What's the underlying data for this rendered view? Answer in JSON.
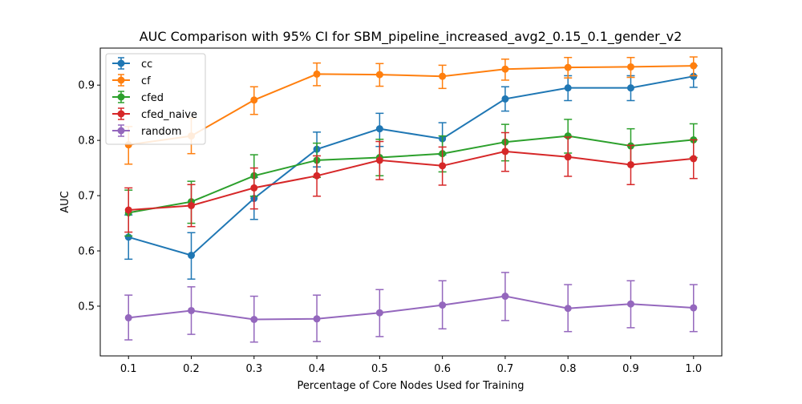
{
  "chart_data": {
    "type": "line",
    "title": "AUC Comparison with 95% CI for SBM_pipeline_increased_avg2_0.15_0.1_gender_v2",
    "xlabel": "Percentage of Core Nodes Used for Training",
    "ylabel": "AUC",
    "x": [
      0.1,
      0.2,
      0.3,
      0.4,
      0.5,
      0.6,
      0.7,
      0.8,
      0.9,
      1.0
    ],
    "x_ticks": [
      "0.1",
      "0.2",
      "0.3",
      "0.4",
      "0.5",
      "0.6",
      "0.7",
      "0.8",
      "0.9",
      "1.0"
    ],
    "y_ticks": [
      "0.5",
      "0.6",
      "0.7",
      "0.8",
      "0.9"
    ],
    "xlim": [
      0.055,
      1.045
    ],
    "ylim": [
      0.41,
      0.967
    ],
    "legend_position": "upper-left",
    "series": [
      {
        "name": "cc",
        "color": "#1f77b4",
        "values": [
          0.625,
          0.592,
          0.695,
          0.784,
          0.821,
          0.803,
          0.875,
          0.895,
          0.895,
          0.916
        ],
        "ci_low": [
          0.585,
          0.549,
          0.657,
          0.752,
          0.789,
          0.774,
          0.853,
          0.872,
          0.872,
          0.896
        ],
        "ci_high": [
          0.665,
          0.633,
          0.733,
          0.815,
          0.849,
          0.832,
          0.897,
          0.917,
          0.917,
          0.935
        ]
      },
      {
        "name": "cf",
        "color": "#ff7f0e",
        "values": [
          0.792,
          0.808,
          0.873,
          0.92,
          0.919,
          0.916,
          0.929,
          0.932,
          0.933,
          0.935
        ],
        "ci_low": [
          0.757,
          0.776,
          0.847,
          0.899,
          0.898,
          0.894,
          0.909,
          0.913,
          0.914,
          0.917
        ],
        "ci_high": [
          0.825,
          0.84,
          0.897,
          0.94,
          0.939,
          0.936,
          0.947,
          0.95,
          0.95,
          0.951
        ]
      },
      {
        "name": "cfed",
        "color": "#2ca02c",
        "values": [
          0.669,
          0.689,
          0.736,
          0.764,
          0.769,
          0.776,
          0.797,
          0.808,
          0.79,
          0.801
        ],
        "ci_low": [
          0.627,
          0.65,
          0.699,
          0.733,
          0.736,
          0.743,
          0.763,
          0.777,
          0.756,
          0.769
        ],
        "ci_high": [
          0.71,
          0.726,
          0.774,
          0.795,
          0.802,
          0.808,
          0.829,
          0.838,
          0.821,
          0.83
        ]
      },
      {
        "name": "cfed_naive",
        "color": "#d62728",
        "values": [
          0.674,
          0.682,
          0.714,
          0.736,
          0.764,
          0.754,
          0.78,
          0.77,
          0.756,
          0.767
        ],
        "ci_low": [
          0.634,
          0.644,
          0.676,
          0.699,
          0.729,
          0.719,
          0.744,
          0.735,
          0.72,
          0.731
        ],
        "ci_high": [
          0.714,
          0.72,
          0.75,
          0.772,
          0.798,
          0.788,
          0.814,
          0.806,
          0.791,
          0.801
        ]
      },
      {
        "name": "random",
        "color": "#9467bd",
        "values": [
          0.479,
          0.492,
          0.476,
          0.477,
          0.488,
          0.502,
          0.518,
          0.496,
          0.504,
          0.497
        ],
        "ci_low": [
          0.439,
          0.449,
          0.435,
          0.436,
          0.445,
          0.459,
          0.474,
          0.454,
          0.461,
          0.454
        ],
        "ci_high": [
          0.52,
          0.535,
          0.518,
          0.52,
          0.53,
          0.546,
          0.561,
          0.539,
          0.546,
          0.539
        ]
      }
    ]
  }
}
